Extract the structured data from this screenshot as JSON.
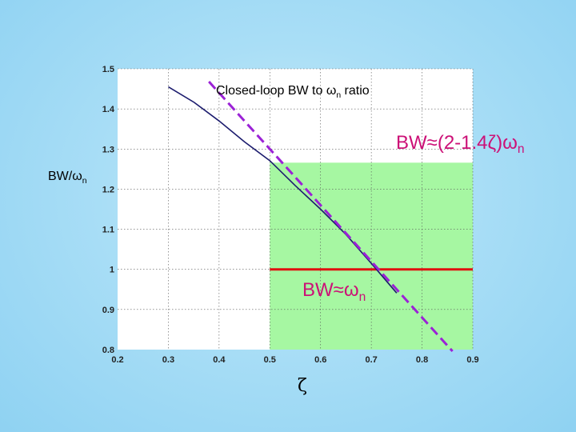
{
  "chart_data": {
    "type": "line",
    "title": "Closed-loop BW to ωn ratio",
    "title_main": "Closed-loop BW to ω",
    "title_sub": "n",
    "title_tail": " ratio",
    "ylabel_main": "BW/ω",
    "ylabel_sub": "n",
    "xlabel": "ζ",
    "xlim": [
      0.2,
      0.9
    ],
    "ylim": [
      0.8,
      1.5
    ],
    "xticks": [
      0.2,
      0.3,
      0.4,
      0.5,
      0.6,
      0.7,
      0.8,
      0.9
    ],
    "xtick_labels": [
      "0.2",
      "0.3",
      "0.4",
      "0.5",
      "0.6",
      "0.7",
      "0.8",
      "0.9"
    ],
    "yticks": [
      0.8,
      0.9,
      1.0,
      1.1,
      1.2,
      1.3,
      1.4,
      1.5
    ],
    "ytick_labels": [
      "0.8",
      "0.9",
      "1",
      "1.1",
      "1.2",
      "1.3",
      "1.4",
      "1.5"
    ],
    "grid": true,
    "series": [
      {
        "x": [
          0.3,
          0.35,
          0.4,
          0.45,
          0.5,
          0.55,
          0.6,
          0.65,
          0.7,
          0.75
        ],
        "y": [
          1.455,
          1.417,
          1.37,
          1.318,
          1.271,
          1.209,
          1.15,
          1.087,
          1.015,
          0.941
        ],
        "color": "#1c1c6e",
        "style": "solid"
      },
      {
        "x": [
          0.38,
          0.86
        ],
        "y": [
          1.468,
          0.796
        ],
        "color": "#9b22d6",
        "style": "dashed"
      }
    ],
    "shaded_region": {
      "x": [
        0.5,
        0.9
      ],
      "y": [
        0.8,
        1.266
      ],
      "color": "#a6f7a2"
    },
    "reference_line": {
      "x": [
        0.5,
        0.9
      ],
      "y": 1.0,
      "color": "#e01010"
    },
    "annotations": [
      {
        "main": "BW≈(2-1.4ζ)ω",
        "sub": "n",
        "color": "#cc1177"
      },
      {
        "main": "BW≈ω",
        "sub": "n",
        "color": "#cc1177"
      }
    ]
  }
}
